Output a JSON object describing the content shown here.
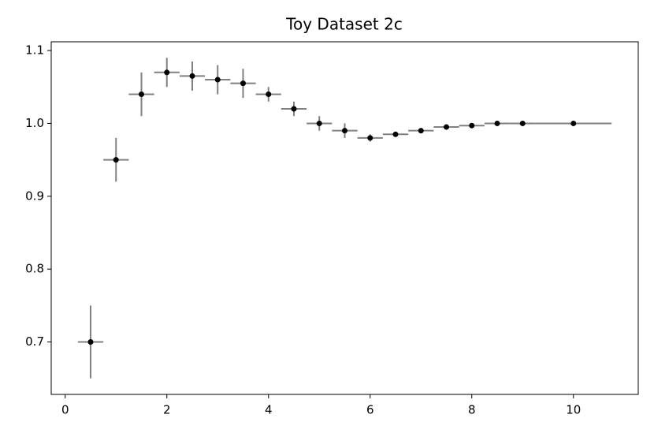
{
  "chart_data": {
    "type": "errorbar",
    "title": "Toy Dataset 2c",
    "x": [
      0.5,
      1.0,
      1.5,
      2.0,
      2.5,
      3.0,
      3.5,
      4.0,
      4.5,
      5.0,
      5.5,
      6.0,
      6.5,
      7.0,
      7.5,
      8.0,
      8.5,
      9.0,
      10.0
    ],
    "values": [
      0.7,
      0.95,
      1.04,
      1.07,
      1.065,
      1.06,
      1.055,
      1.04,
      1.02,
      1.0,
      0.99,
      0.98,
      0.985,
      0.99,
      0.995,
      0.997,
      1.0,
      1.0,
      1.0
    ],
    "xerr": [
      0.25,
      0.25,
      0.25,
      0.25,
      0.25,
      0.25,
      0.25,
      0.25,
      0.25,
      0.25,
      0.25,
      0.25,
      0.25,
      0.25,
      0.25,
      0.25,
      0.25,
      0.25,
      0.75
    ],
    "yerr": [
      0.05,
      0.03,
      0.03,
      0.02,
      0.02,
      0.02,
      0.02,
      0.01,
      0.01,
      0.01,
      0.01,
      0.005,
      0.003,
      0.003,
      0.002,
      0.002,
      0.001,
      0.001,
      0.001
    ],
    "color": "#000000",
    "errorbar_color": "#808080",
    "xlim": [
      -0.275,
      11.275
    ],
    "ylim": [
      0.628,
      1.112
    ],
    "xticks": [
      0,
      2,
      4,
      6,
      8,
      10
    ],
    "yticks": [
      0.7,
      0.8,
      0.9,
      {
        "value": 1.0,
        "label": "1.0"
      },
      1.1
    ],
    "grid": false
  }
}
